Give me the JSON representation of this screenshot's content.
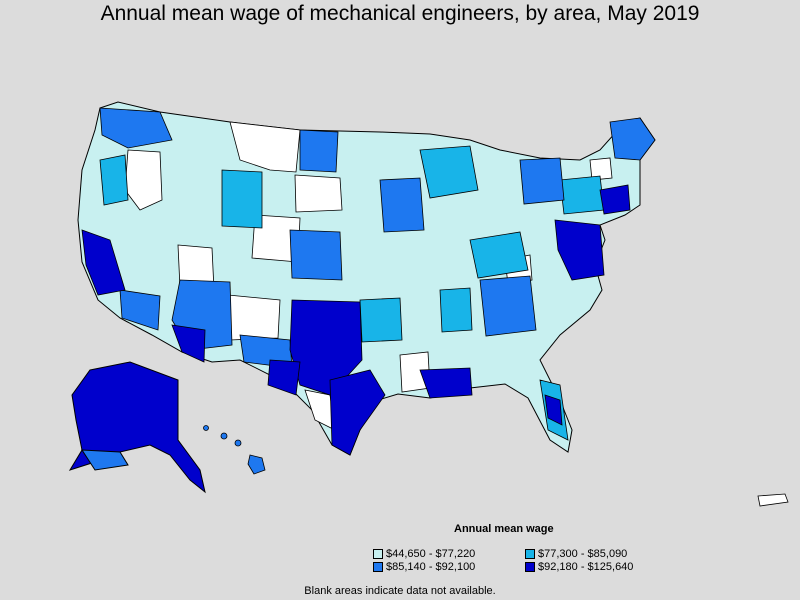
{
  "title": "Annual mean wage of mechanical engineers, by area, May 2019",
  "legend": {
    "title": "Annual mean wage",
    "items": [
      {
        "label": "$44,650 - $77,220",
        "color": "#c8f0f0"
      },
      {
        "label": "$77,300 - $85,090",
        "color": "#18b4e8"
      },
      {
        "label": "$85,140 - $92,100",
        "color": "#1e78f0"
      },
      {
        "label": "$92,180 - $125,640",
        "color": "#0000cc"
      }
    ]
  },
  "footnote": "Blank areas indicate data not available.",
  "colors": {
    "background": "#dcdcdc",
    "no_data": "#ffffff",
    "border": "#000000"
  }
}
